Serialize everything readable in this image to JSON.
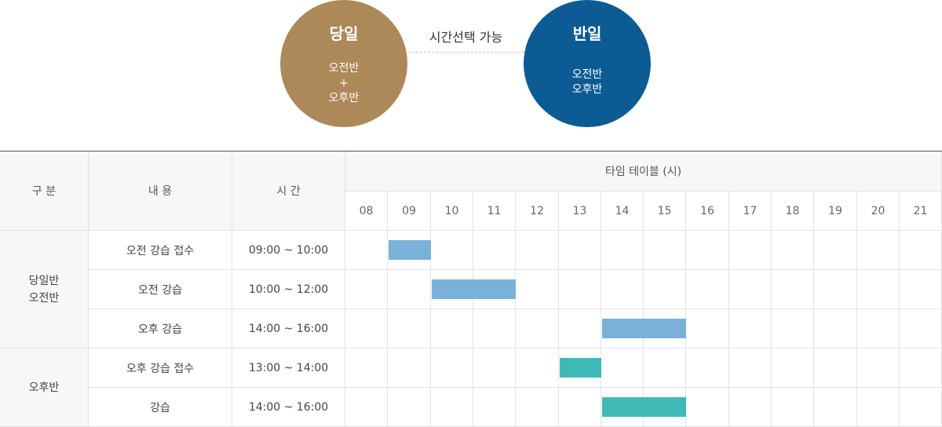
{
  "top": {
    "same_day": {
      "title": "당일",
      "lines": [
        "오전반",
        "+",
        "오후반"
      ],
      "color": "#ad8858"
    },
    "middle_text": "시간선택 가능",
    "half_day": {
      "title": "반일",
      "lines": [
        "오전반",
        "오후반"
      ],
      "color": "#0c5b95"
    }
  },
  "table": {
    "headers": {
      "category": "구 분",
      "content": "내 용",
      "time": "시 간",
      "timetable": "타임 테이블 (시)"
    },
    "hours": [
      "08",
      "09",
      "10",
      "11",
      "12",
      "13",
      "14",
      "15",
      "16",
      "17",
      "18",
      "19",
      "20",
      "21"
    ],
    "groups": [
      {
        "label_lines": [
          "당일반",
          "오전반"
        ],
        "rows": [
          0,
          1,
          2
        ]
      },
      {
        "label_lines": [
          "오후반"
        ],
        "rows": [
          3,
          4
        ]
      }
    ],
    "rows": [
      {
        "content": "오전 강습 접수",
        "time": "09:00 ~ 10:00",
        "start": 9,
        "end": 10,
        "color": "#7ab1d8"
      },
      {
        "content": "오전 강습",
        "time": "10:00 ~ 12:00",
        "start": 10,
        "end": 12,
        "color": "#7ab1d8"
      },
      {
        "content": "오후 강습",
        "time": "14:00 ~ 16:00",
        "start": 14,
        "end": 16,
        "color": "#7ab1d8"
      },
      {
        "content": "오후 강습 접수",
        "time": "13:00 ~ 14:00",
        "start": 13,
        "end": 14,
        "color": "#40bab7"
      },
      {
        "content": "강습",
        "time": "14:00 ~ 16:00",
        "start": 14,
        "end": 16,
        "color": "#40bab7"
      }
    ]
  }
}
